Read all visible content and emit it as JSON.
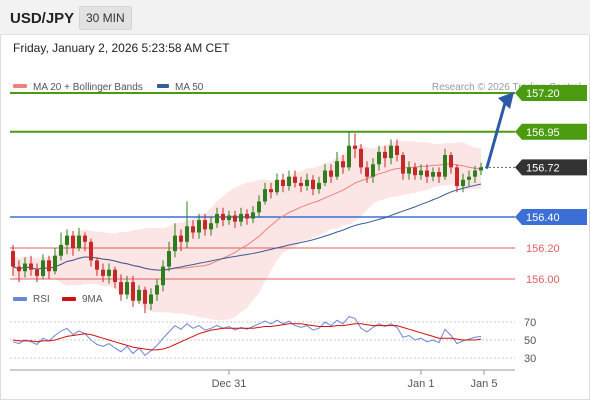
{
  "header": {
    "pair": "USD/JPY",
    "timeframe": "30 MIN"
  },
  "datetime": "Friday, January 2, 2026 5:23:58 AM CET",
  "credit": "Research © 2026 Trading Central",
  "colors": {
    "up": "#2e7d1e",
    "down": "#c62828",
    "green_level": "#4a9b10",
    "blue_level": "#3b6fd6",
    "red_level": "#e06060",
    "ma50": "#3a5a99",
    "band": "#f7b4b4",
    "rsi": "#6a86d6",
    "rsi_ma": "#d01010",
    "arrow": "#2d5aa8",
    "current_badge": "#333333"
  },
  "chart_data": [
    {
      "type": "candlestick",
      "legend": [
        {
          "name": "MA 20 + Bollinger Bands",
          "color": "#f08080"
        },
        {
          "name": "MA 50",
          "color": "#3a5a99"
        }
      ],
      "legend_position": "top-left",
      "x_ticks": [
        "Dec 31",
        "Jan 1",
        "Jan 5"
      ],
      "ylim": [
        155.7,
        157.4
      ],
      "current_price": 156.72,
      "levels": [
        {
          "label": "157.20",
          "value": 157.2,
          "kind": "resistance"
        },
        {
          "label": "156.95",
          "value": 156.95,
          "kind": "resistance"
        },
        {
          "label": "156.72",
          "value": 156.72,
          "kind": "current"
        },
        {
          "label": "156.40",
          "value": 156.4,
          "kind": "pivot"
        },
        {
          "label": "156.20",
          "value": 156.2,
          "kind": "support"
        },
        {
          "label": "156.00",
          "value": 156.0,
          "kind": "support"
        }
      ],
      "projection": {
        "from": 156.72,
        "to": 157.2,
        "direction": "up"
      },
      "candles": [
        [
          156.18,
          156.08,
          156.22,
          156.02
        ],
        [
          156.08,
          156.05,
          156.12,
          155.98
        ],
        [
          156.05,
          156.1,
          156.14,
          156.01
        ],
        [
          156.1,
          156.06,
          156.15,
          156.02
        ],
        [
          156.06,
          156.02,
          156.1,
          155.98
        ],
        [
          156.02,
          156.12,
          156.16,
          156.0
        ],
        [
          156.12,
          156.05,
          156.15,
          156.0
        ],
        [
          156.05,
          156.15,
          156.2,
          156.03
        ],
        [
          156.15,
          156.22,
          156.3,
          156.12
        ],
        [
          156.22,
          156.28,
          156.32,
          156.16
        ],
        [
          156.28,
          156.2,
          156.31,
          156.15
        ],
        [
          156.2,
          156.28,
          156.33,
          156.18
        ],
        [
          156.28,
          156.24,
          156.3,
          156.18
        ],
        [
          156.24,
          156.12,
          156.26,
          156.08
        ],
        [
          156.12,
          156.06,
          156.14,
          156.02
        ],
        [
          156.06,
          156.02,
          156.1,
          155.98
        ],
        [
          156.02,
          156.06,
          156.1,
          155.97
        ],
        [
          156.06,
          155.98,
          156.08,
          155.94
        ],
        [
          155.98,
          155.9,
          156.03,
          155.86
        ],
        [
          155.9,
          155.98,
          156.02,
          155.87
        ],
        [
          155.98,
          155.86,
          156.02,
          155.82
        ],
        [
          155.86,
          155.93,
          155.96,
          155.84
        ],
        [
          155.93,
          155.84,
          155.95,
          155.78
        ],
        [
          155.84,
          155.9,
          155.94,
          155.8
        ],
        [
          155.9,
          155.96,
          156.0,
          155.86
        ],
        [
          155.96,
          156.08,
          156.12,
          155.92
        ],
        [
          156.08,
          156.18,
          156.24,
          156.05
        ],
        [
          156.18,
          156.28,
          156.36,
          156.14
        ],
        [
          156.28,
          156.24,
          156.32,
          156.18
        ],
        [
          156.24,
          156.34,
          156.5,
          156.2
        ],
        [
          156.34,
          156.3,
          156.38,
          156.26
        ],
        [
          156.3,
          156.38,
          156.42,
          156.26
        ],
        [
          156.38,
          156.32,
          156.42,
          156.28
        ],
        [
          156.32,
          156.36,
          156.4,
          156.28
        ],
        [
          156.36,
          156.42,
          156.46,
          156.33
        ],
        [
          156.42,
          156.38,
          156.46,
          156.34
        ],
        [
          156.38,
          156.41,
          156.44,
          156.35
        ],
        [
          156.41,
          156.37,
          156.44,
          156.33
        ],
        [
          156.37,
          156.42,
          156.46,
          156.34
        ],
        [
          156.42,
          156.39,
          156.45,
          156.35
        ],
        [
          156.39,
          156.43,
          156.47,
          156.36
        ],
        [
          156.43,
          156.5,
          156.54,
          156.4
        ],
        [
          156.5,
          156.58,
          156.62,
          156.48
        ],
        [
          156.58,
          156.56,
          156.62,
          156.52
        ],
        [
          156.56,
          156.64,
          156.68,
          156.54
        ],
        [
          156.64,
          156.6,
          156.68,
          156.56
        ],
        [
          156.6,
          156.66,
          156.7,
          156.57
        ],
        [
          156.66,
          156.62,
          156.7,
          156.59
        ],
        [
          156.62,
          156.6,
          156.66,
          156.56
        ],
        [
          156.6,
          156.64,
          156.68,
          156.57
        ],
        [
          156.64,
          156.58,
          156.67,
          156.54
        ],
        [
          156.58,
          156.62,
          156.66,
          156.55
        ],
        [
          156.62,
          156.7,
          156.74,
          156.6
        ],
        [
          156.7,
          156.66,
          156.74,
          156.62
        ],
        [
          156.66,
          156.76,
          156.82,
          156.64
        ],
        [
          156.76,
          156.72,
          156.8,
          156.68
        ],
        [
          156.72,
          156.86,
          156.95,
          156.7
        ],
        [
          156.86,
          156.84,
          156.94,
          156.78
        ],
        [
          156.84,
          156.72,
          156.87,
          156.68
        ],
        [
          156.72,
          156.66,
          156.76,
          156.62
        ],
        [
          156.66,
          156.74,
          156.78,
          156.62
        ],
        [
          156.74,
          156.82,
          156.86,
          156.7
        ],
        [
          156.82,
          156.78,
          156.86,
          156.72
        ],
        [
          156.78,
          156.86,
          156.9,
          156.74
        ],
        [
          156.86,
          156.8,
          156.9,
          156.76
        ],
        [
          156.8,
          156.68,
          156.82,
          156.64
        ],
        [
          156.68,
          156.72,
          156.76,
          156.64
        ],
        [
          156.72,
          156.67,
          156.75,
          156.64
        ],
        [
          156.67,
          156.7,
          156.74,
          156.64
        ],
        [
          156.7,
          156.66,
          156.74,
          156.62
        ],
        [
          156.66,
          156.69,
          156.72,
          156.63
        ],
        [
          156.69,
          156.66,
          156.72,
          156.62
        ],
        [
          156.66,
          156.8,
          156.84,
          156.64
        ],
        [
          156.8,
          156.72,
          156.82,
          156.68
        ],
        [
          156.72,
          156.6,
          156.74,
          156.56
        ],
        [
          156.6,
          156.64,
          156.68,
          156.56
        ],
        [
          156.64,
          156.66,
          156.7,
          156.6
        ],
        [
          156.66,
          156.7,
          156.73,
          156.62
        ],
        [
          156.7,
          156.72,
          156.75,
          156.67
        ]
      ]
    },
    {
      "type": "line",
      "legend": [
        {
          "name": "RSI",
          "color": "#6a86d6"
        },
        {
          "name": "9MA",
          "color": "#d01010"
        }
      ],
      "y_ticks": [
        "70",
        "50",
        "30"
      ],
      "ylim": [
        20,
        80
      ],
      "rsi": [
        48,
        46,
        50,
        48,
        45,
        52,
        49,
        55,
        60,
        63,
        56,
        60,
        57,
        50,
        45,
        43,
        46,
        41,
        37,
        43,
        35,
        41,
        33,
        38,
        44,
        52,
        59,
        66,
        62,
        68,
        63,
        66,
        61,
        63,
        66,
        63,
        65,
        61,
        64,
        62,
        65,
        68,
        71,
        68,
        72,
        68,
        71,
        66,
        64,
        66,
        61,
        63,
        70,
        66,
        72,
        68,
        76,
        74,
        63,
        59,
        64,
        68,
        65,
        68,
        64,
        53,
        55,
        50,
        52,
        48,
        50,
        47,
        62,
        55,
        46,
        49,
        51,
        53,
        54
      ],
      "rsi_ma": [
        50,
        49,
        49,
        49,
        48,
        49,
        49,
        50,
        52,
        54,
        55,
        56,
        57,
        56,
        54,
        52,
        50,
        48,
        46,
        44,
        42,
        41,
        40,
        39,
        39,
        40,
        42,
        45,
        48,
        51,
        54,
        57,
        59,
        61,
        62,
        63,
        63,
        63,
        63,
        63,
        63,
        64,
        65,
        65,
        66,
        67,
        68,
        68,
        68,
        67,
        66,
        65,
        65,
        65,
        66,
        66,
        67,
        68,
        68,
        67,
        66,
        66,
        66,
        66,
        66,
        64,
        62,
        60,
        58,
        56,
        54,
        52,
        52,
        52,
        51,
        50,
        50,
        50,
        51
      ]
    }
  ]
}
